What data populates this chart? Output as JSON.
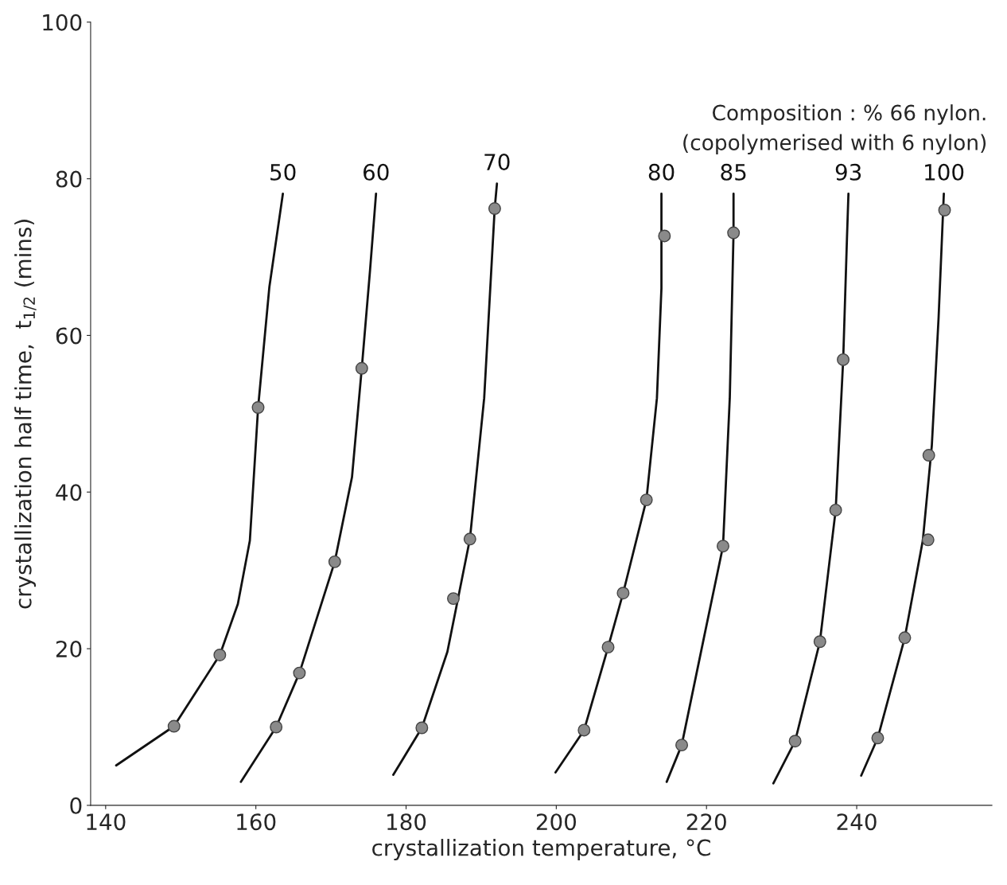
{
  "chart_data": {
    "type": "line",
    "xlabel": "crystallization temperature, °C",
    "ylabel": "crystallization half time,  t$_{1/2}$ (mins)",
    "annotations": [
      "Composition : % 66 nylon.",
      "(copolymerised with 6 nylon)"
    ],
    "xlim": [
      138,
      258
    ],
    "xticks": [
      140,
      160,
      180,
      200,
      220,
      240
    ],
    "ylim": [
      0,
      100
    ],
    "yticks": [
      0,
      20,
      40,
      60,
      80,
      100
    ],
    "grid": false,
    "legend": false,
    "series": [
      {
        "type": "scatter",
        "marker": "circle",
        "color": "#8a8a8a",
        "x": [
          149.1,
          155.2,
          160.3
        ],
        "values": [
          10.1,
          19.2,
          50.8
        ]
      },
      {
        "name": "50",
        "color": "#111111",
        "line_style": "solid",
        "x": [
          141.4,
          149.1,
          155.2,
          157.6,
          159.2,
          160.3,
          161.8,
          163.6
        ],
        "values": [
          5.1,
          10.1,
          19.2,
          25.7,
          33.8,
          50.8,
          66.2,
          78.1
        ]
      },
      {
        "type": "scatter",
        "marker": "circle",
        "color": "#8a8a8a",
        "x": [
          162.7,
          165.8,
          170.5,
          174.1
        ],
        "values": [
          10.0,
          16.9,
          31.1,
          55.8
        ]
      },
      {
        "name": "60",
        "color": "#111111",
        "line_style": "solid",
        "x": [
          158.0,
          162.7,
          165.8,
          170.5,
          172.8,
          174.1,
          175.2,
          176.0
        ],
        "values": [
          3.0,
          10.0,
          16.9,
          31.1,
          41.9,
          55.8,
          68.3,
          78.1
        ]
      },
      {
        "type": "scatter",
        "marker": "circle",
        "color": "#8a8a8a",
        "x": [
          182.1,
          186.3,
          188.5,
          191.8
        ],
        "values": [
          9.9,
          26.4,
          34.0,
          76.2
        ]
      },
      {
        "name": "70",
        "color": "#111111",
        "line_style": "solid",
        "x": [
          178.3,
          182.1,
          185.5,
          188.5,
          190.4,
          191.8,
          192.1
        ],
        "values": [
          3.9,
          9.9,
          19.6,
          34.0,
          52.0,
          76.2,
          79.4
        ]
      },
      {
        "type": "scatter",
        "marker": "circle",
        "color": "#8a8a8a",
        "x": [
          203.7,
          206.9,
          208.9,
          212.0,
          214.4
        ],
        "values": [
          9.6,
          20.2,
          27.1,
          39.0,
          72.7
        ]
      },
      {
        "name": "80",
        "color": "#111111",
        "line_style": "solid",
        "x": [
          199.9,
          203.7,
          206.9,
          208.9,
          212.0,
          213.4,
          214.0,
          214.0
        ],
        "values": [
          4.2,
          9.6,
          20.2,
          27.1,
          39.0,
          52.0,
          66.0,
          78.1
        ]
      },
      {
        "type": "scatter",
        "marker": "circle",
        "color": "#8a8a8a",
        "x": [
          216.7,
          222.2,
          223.6
        ],
        "values": [
          7.7,
          33.1,
          73.1
        ]
      },
      {
        "name": "85",
        "color": "#111111",
        "line_style": "solid",
        "x": [
          214.7,
          216.7,
          219.7,
          222.2,
          223.1,
          223.6,
          223.6
        ],
        "values": [
          3.0,
          7.7,
          21.6,
          33.1,
          52.0,
          73.1,
          78.1
        ]
      },
      {
        "type": "scatter",
        "marker": "circle",
        "color": "#8a8a8a",
        "x": [
          231.8,
          235.1,
          237.2,
          238.2
        ],
        "values": [
          8.2,
          20.9,
          37.7,
          56.9
        ]
      },
      {
        "name": "93",
        "color": "#111111",
        "line_style": "solid",
        "x": [
          228.9,
          231.8,
          235.1,
          237.2,
          238.2,
          238.7,
          238.9
        ],
        "values": [
          2.8,
          8.2,
          20.9,
          37.7,
          56.9,
          72.3,
          78.1
        ]
      },
      {
        "type": "scatter",
        "marker": "circle",
        "color": "#8a8a8a",
        "x": [
          242.8,
          246.4,
          249.5,
          249.6,
          251.7
        ],
        "values": [
          8.6,
          21.4,
          33.9,
          44.7,
          76.0
        ]
      },
      {
        "name": "100",
        "color": "#111111",
        "line_style": "solid",
        "x": [
          240.6,
          242.8,
          246.4,
          248.8,
          250.0,
          250.9,
          251.6
        ],
        "values": [
          3.8,
          8.6,
          21.4,
          33.8,
          45.9,
          62.2,
          78.1
        ]
      }
    ]
  }
}
